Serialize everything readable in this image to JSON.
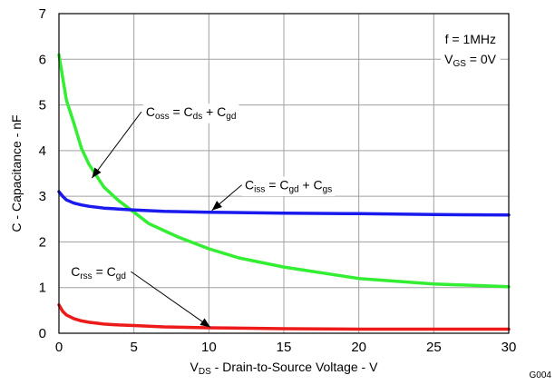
{
  "chart_data": {
    "type": "line",
    "title": "",
    "xlabel": {
      "main": "V",
      "sub": "DS",
      "rest": " - Drain-to-Source Voltage - V"
    },
    "ylabel": "C - Capacitance - nF",
    "xlim": [
      0,
      30
    ],
    "ylim": [
      0,
      7
    ],
    "xticks": [
      "0",
      "5",
      "10",
      "15",
      "20",
      "25",
      "30"
    ],
    "yticks": [
      "0",
      "1",
      "2",
      "3",
      "4",
      "5",
      "6",
      "7"
    ],
    "grid": true,
    "figure_id": "G004",
    "conditions": [
      {
        "parts": [
          {
            "t": "f = 1MHz"
          }
        ]
      },
      {
        "parts": [
          {
            "t": "V"
          },
          {
            "t": "GS",
            "sub": true
          },
          {
            "t": " = 0V"
          }
        ]
      }
    ],
    "series": [
      {
        "name_parts": [
          {
            "t": "C"
          },
          {
            "t": "oss",
            "sub": true
          },
          {
            "t": " = C"
          },
          {
            "t": "ds",
            "sub": true
          },
          {
            "t": " + C"
          },
          {
            "t": "gd",
            "sub": true
          }
        ],
        "color": "#33ee33",
        "x": [
          0,
          0.25,
          0.5,
          1,
          1.5,
          2,
          3,
          4,
          5,
          6,
          7,
          8,
          10,
          12,
          15,
          20,
          25,
          30
        ],
        "y": [
          6.1,
          5.6,
          5.1,
          4.6,
          4.05,
          3.7,
          3.2,
          2.9,
          2.65,
          2.4,
          2.25,
          2.1,
          1.85,
          1.65,
          1.45,
          1.2,
          1.08,
          1.02
        ],
        "label_at": [
          5.8,
          4.85
        ],
        "arrow_from": [
          5.5,
          4.85
        ],
        "arrow_to": [
          2.2,
          3.4
        ]
      },
      {
        "name_parts": [
          {
            "t": "C"
          },
          {
            "t": "iss",
            "sub": true
          },
          {
            "t": " = C"
          },
          {
            "t": "gd",
            "sub": true
          },
          {
            "t": " + C"
          },
          {
            "t": "gs",
            "sub": true
          }
        ],
        "color": "#1a1aee",
        "x": [
          0,
          0.25,
          0.5,
          1,
          1.5,
          2,
          3,
          4,
          5,
          7,
          10,
          15,
          20,
          25,
          30
        ],
        "y": [
          3.1,
          3.0,
          2.92,
          2.85,
          2.81,
          2.78,
          2.74,
          2.72,
          2.7,
          2.67,
          2.65,
          2.63,
          2.62,
          2.6,
          2.59
        ],
        "label_at": [
          12.4,
          3.25
        ],
        "arrow_from": [
          12.2,
          3.25
        ],
        "arrow_to": [
          10.2,
          2.69
        ]
      },
      {
        "name_parts": [
          {
            "t": "C"
          },
          {
            "t": "rss",
            "sub": true
          },
          {
            "t": " = C"
          },
          {
            "t": "gd",
            "sub": true
          }
        ],
        "color": "#ee1a1a",
        "x": [
          0,
          0.25,
          0.5,
          1,
          1.5,
          2,
          3,
          4,
          5,
          7,
          10,
          15,
          20,
          25,
          30
        ],
        "y": [
          0.62,
          0.48,
          0.4,
          0.32,
          0.27,
          0.24,
          0.2,
          0.18,
          0.17,
          0.14,
          0.12,
          0.1,
          0.09,
          0.09,
          0.09
        ],
        "label_at": [
          0.8,
          1.35
        ],
        "arrow_from": [
          4.8,
          1.35
        ],
        "arrow_to": [
          10.1,
          0.13
        ]
      }
    ]
  }
}
